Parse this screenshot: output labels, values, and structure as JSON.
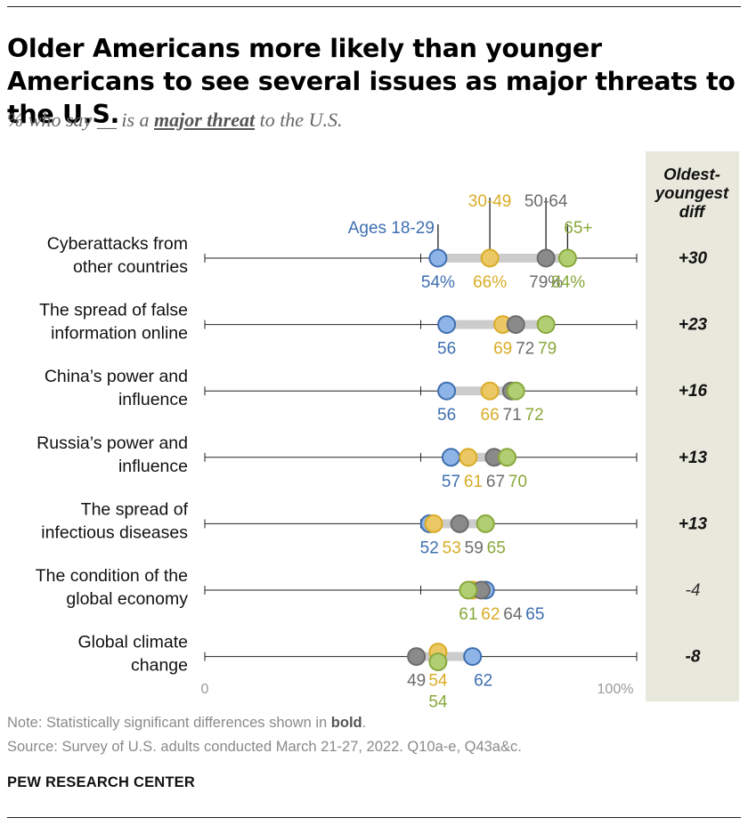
{
  "title": "Older Americans more likely than younger Americans to see several issues as major threats to the U.S.",
  "subtitle": {
    "prefix": "% who say __ is a ",
    "emphasis": "major threat",
    "suffix": " to the U.S."
  },
  "diff_header": [
    "Oldest-",
    "youngest",
    "diff"
  ],
  "notes": {
    "note_prefix": "Note: Statistically significant differences shown in ",
    "note_bold": "bold",
    "note_suffix": ".",
    "source": "Source: Survey of U.S. adults conducted March 21-27, 2022. Q10a-e, Q43a&c.",
    "brand": "PEW RESEARCH CENTER"
  },
  "chart_data": {
    "type": "dot",
    "xlim": [
      0,
      100
    ],
    "axis_labels": [
      "0",
      "100%"
    ],
    "grid": false,
    "legend_placement": "inline above first row",
    "colors": {
      "Ages 18-29": "#3e6fb0",
      "30-49": "#d9ac27",
      "50-64": "#6c6c6c",
      "65+": "#88a83b"
    },
    "fills": {
      "Ages 18-29": "#8fb5e8",
      "30-49": "#ecc865",
      "50-64": "#8a8a8a",
      "65+": "#b2ce73"
    },
    "series": [
      {
        "name": "Ages 18-29"
      },
      {
        "name": "30-49"
      },
      {
        "name": "50-64"
      },
      {
        "name": "65+"
      }
    ],
    "categories": [
      {
        "label": [
          "Cyberattacks from",
          "other countries"
        ],
        "values": [
          54,
          66,
          79,
          84
        ],
        "value_labels": [
          "54%",
          "66%",
          "79%",
          "84%"
        ],
        "diff": "+30",
        "significant": true
      },
      {
        "label": [
          "The spread of false",
          "information online"
        ],
        "values": [
          56,
          69,
          72,
          79
        ],
        "value_labels": [
          "56",
          "69",
          "72",
          "79"
        ],
        "diff": "+23",
        "significant": true
      },
      {
        "label": [
          "China’s power and",
          "influence"
        ],
        "values": [
          56,
          66,
          71,
          72
        ],
        "value_labels": [
          "56",
          "66",
          "71",
          "72"
        ],
        "diff": "+16",
        "significant": true
      },
      {
        "label": [
          "Russia’s power and",
          "influence"
        ],
        "values": [
          57,
          61,
          67,
          70
        ],
        "value_labels": [
          "57",
          "61",
          "67",
          "70"
        ],
        "diff": "+13",
        "significant": true
      },
      {
        "label": [
          "The spread of",
          "infectious diseases"
        ],
        "values": [
          52,
          53,
          59,
          65
        ],
        "value_labels": [
          "52",
          "53",
          "59",
          "65"
        ],
        "diff": "+13",
        "significant": true
      },
      {
        "label": [
          "The condition of the",
          "global economy"
        ],
        "values": [
          65,
          62,
          64,
          61
        ],
        "value_labels": [
          "65",
          "62",
          "64",
          "61"
        ],
        "diff": "-4",
        "significant": false
      },
      {
        "label": [
          "Global climate",
          "change"
        ],
        "values": [
          62,
          54,
          49,
          54
        ],
        "value_labels": [
          "62",
          "54",
          "49",
          "54"
        ],
        "diff": "-8",
        "significant": true
      }
    ]
  }
}
